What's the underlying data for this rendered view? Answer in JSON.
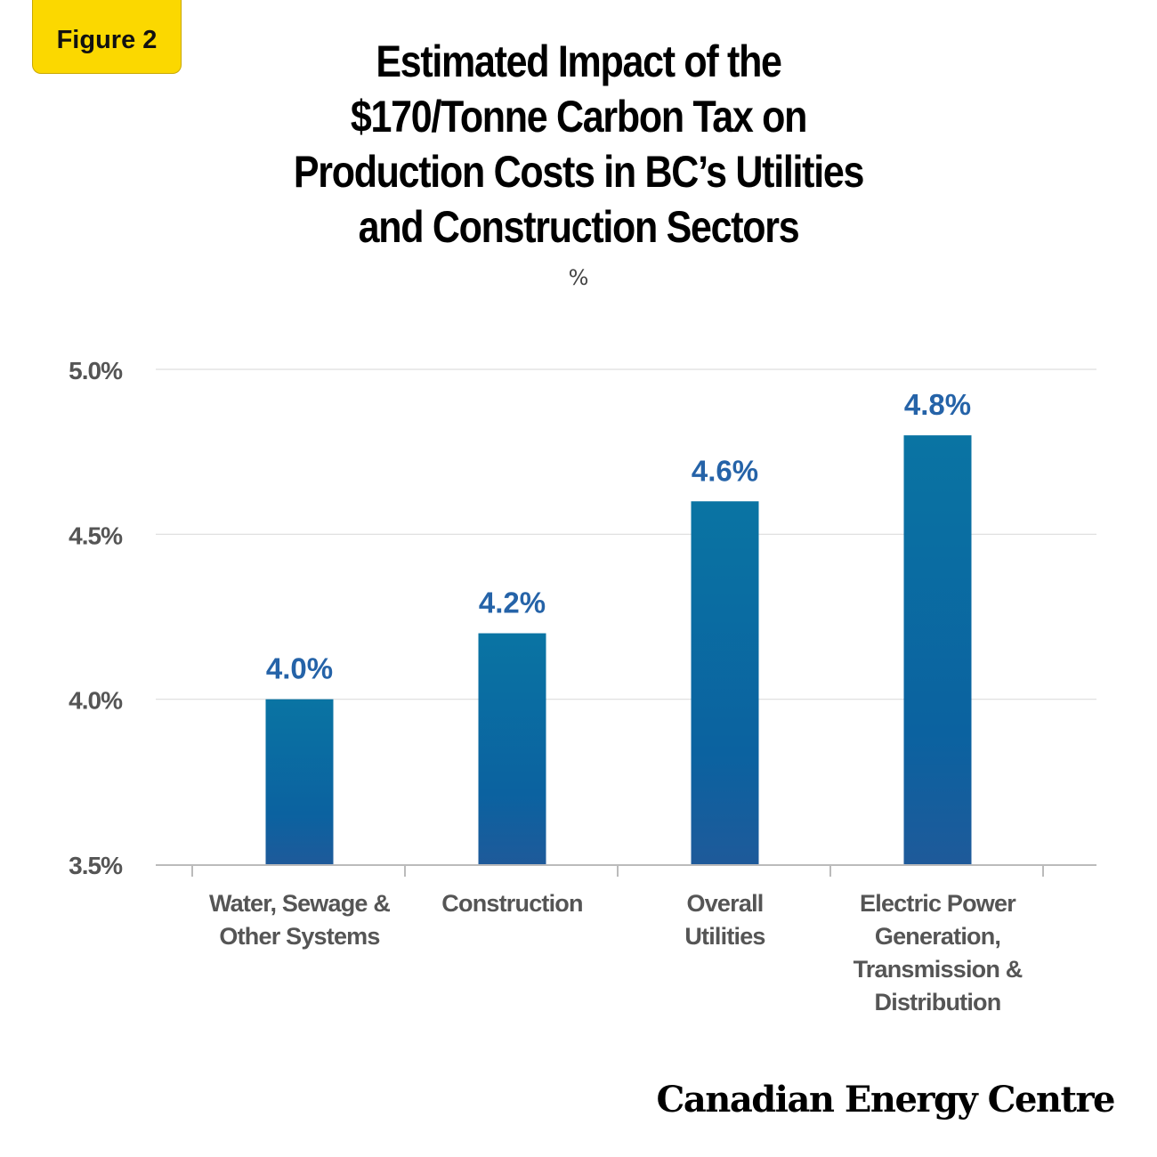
{
  "badge": {
    "label": "Figure 2"
  },
  "logo": {
    "text": "Canadian Energy Centre"
  },
  "chart_data": {
    "type": "bar",
    "title": "Estimated Impact of the $170/Tonne Carbon Tax on Production Costs in BC’s Utilities and Construction Sectors",
    "title_lines": [
      "Estimated Impact of the",
      "$170/Tonne Carbon Tax on",
      "Production Costs in BC’s Utilities",
      "and Construction Sectors"
    ],
    "subtitle": "%",
    "categories": [
      [
        "Water, Sewage &",
        "Other Systems"
      ],
      [
        "Construction"
      ],
      [
        "Overall",
        "Utilities"
      ],
      [
        "Electric Power",
        "Generation,",
        "Transmission &",
        "Distribution"
      ]
    ],
    "values": [
      4.0,
      4.2,
      4.6,
      4.8
    ],
    "data_labels": [
      "4.0%",
      "4.2%",
      "4.6%",
      "4.8%"
    ],
    "ylim": [
      3.5,
      5.0
    ],
    "yticks": [
      3.5,
      4.0,
      4.5,
      5.0
    ],
    "ytick_labels": [
      "3.5%",
      "4.0%",
      "4.5%",
      "5.0%"
    ],
    "grid": true,
    "colors": {
      "bar_top": "#0a74a3",
      "bar_bottom": "#1e5a9a",
      "label": "#2563a8",
      "grid": "#dddddd",
      "axis": "#bbbbbb"
    }
  }
}
